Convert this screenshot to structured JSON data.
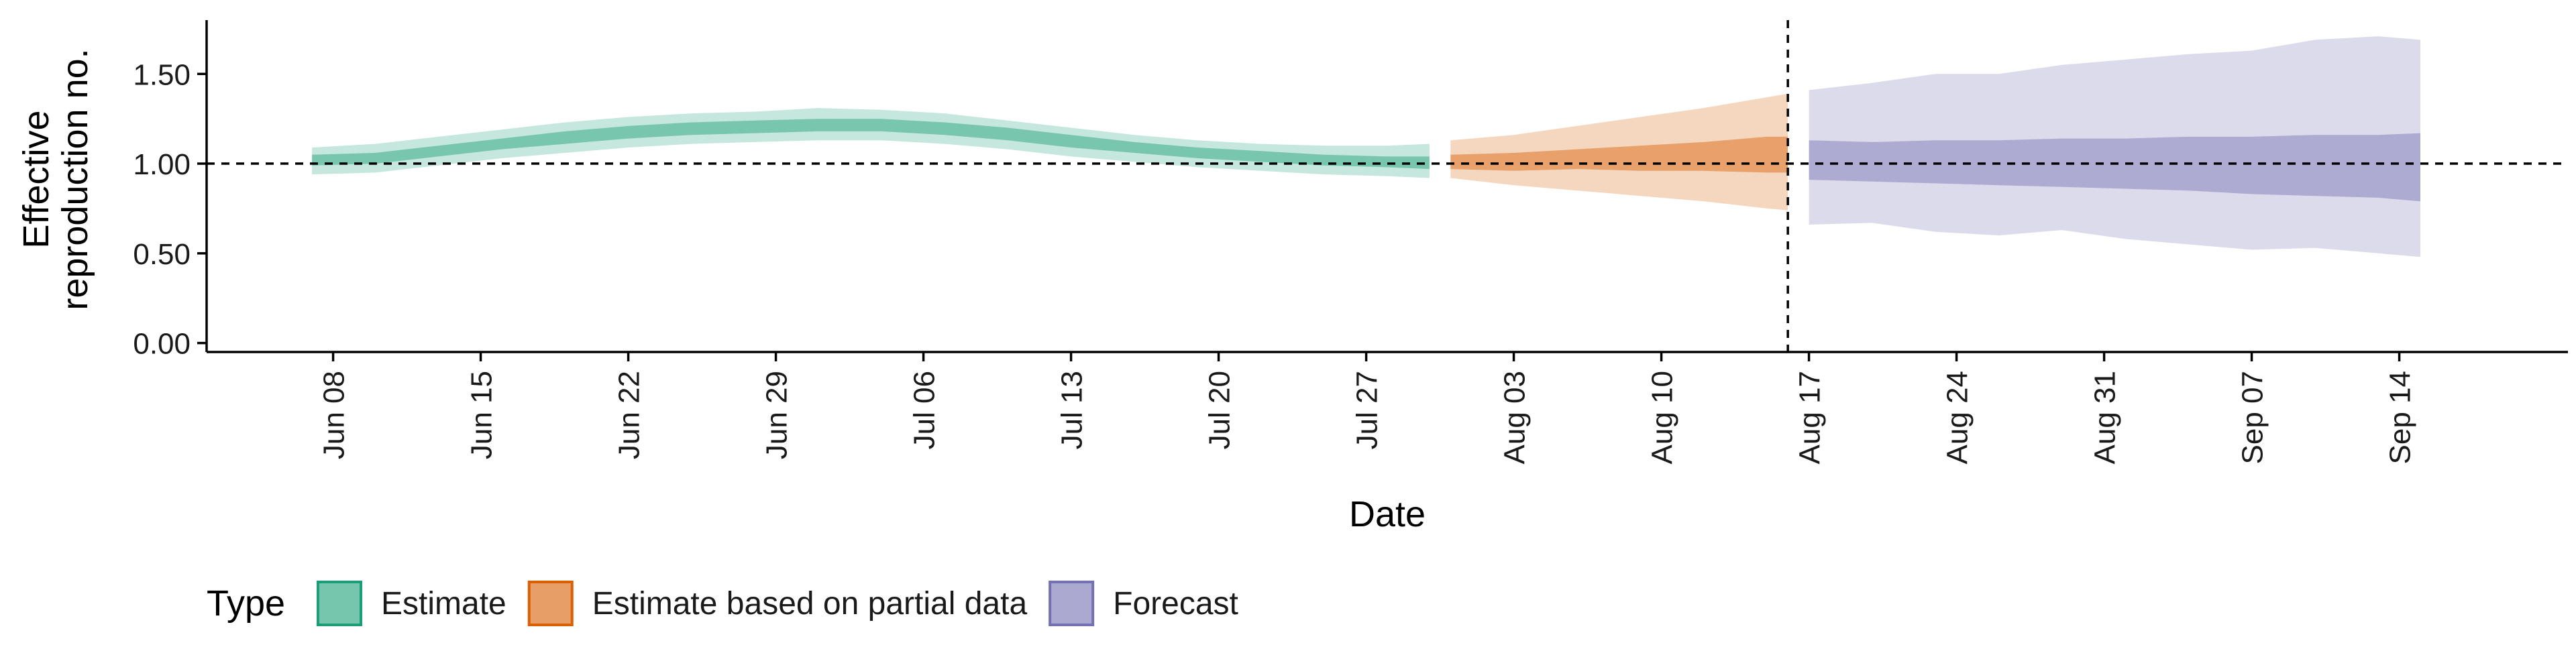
{
  "chart_data": {
    "type": "area",
    "xlabel": "Date",
    "ylabel": [
      "Effective",
      "reproduction no."
    ],
    "ylim": [
      -0.05,
      1.8
    ],
    "yticks": [
      0.0,
      0.5,
      1.0,
      1.5
    ],
    "ytick_labels": [
      "0.00",
      "0.50",
      "1.00",
      "1.50"
    ],
    "xlim": [
      "2020-06-02",
      "2020-09-22"
    ],
    "xticks": [
      "2020-06-08",
      "2020-06-15",
      "2020-06-22",
      "2020-06-29",
      "2020-07-06",
      "2020-07-13",
      "2020-07-20",
      "2020-07-27",
      "2020-08-03",
      "2020-08-10",
      "2020-08-17",
      "2020-08-24",
      "2020-08-31",
      "2020-09-07",
      "2020-09-14"
    ],
    "xtick_labels": [
      "Jun 08",
      "Jun 15",
      "Jun 22",
      "Jun 29",
      "Jul 06",
      "Jul 13",
      "Jul 20",
      "Jul 27",
      "Aug 03",
      "Aug 10",
      "Aug 17",
      "Aug 24",
      "Aug 31",
      "Sep 07",
      "Sep 14"
    ],
    "reference_line": {
      "y": 1.0,
      "style": "dashed"
    },
    "forecast_date_line": {
      "x": "2020-08-16",
      "style": "dashed"
    },
    "grid": false,
    "legend": {
      "position": "bottom-left",
      "title": "Type",
      "entries": [
        {
          "label": "Estimate",
          "color": "#1b9e77"
        },
        {
          "label": "Estimate based on partial data",
          "color": "#d95f02"
        },
        {
          "label": "Forecast",
          "color": "#7570b3"
        }
      ]
    },
    "series": [
      {
        "name": "Estimate",
        "color": "#1b9e77",
        "points": [
          {
            "x": "2020-06-07",
            "median": 1.02,
            "lower_50": 0.99,
            "upper_50": 1.05,
            "lower_90": 0.94,
            "upper_90": 1.09
          },
          {
            "x": "2020-06-10",
            "median": 1.03,
            "lower_50": 1.0,
            "upper_50": 1.06,
            "lower_90": 0.95,
            "upper_90": 1.11
          },
          {
            "x": "2020-06-13",
            "median": 1.07,
            "lower_50": 1.04,
            "upper_50": 1.1,
            "lower_90": 0.99,
            "upper_90": 1.15
          },
          {
            "x": "2020-06-16",
            "median": 1.11,
            "lower_50": 1.08,
            "upper_50": 1.14,
            "lower_90": 1.03,
            "upper_90": 1.19
          },
          {
            "x": "2020-06-19",
            "median": 1.14,
            "lower_50": 1.11,
            "upper_50": 1.18,
            "lower_90": 1.06,
            "upper_90": 1.23
          },
          {
            "x": "2020-06-22",
            "median": 1.17,
            "lower_50": 1.14,
            "upper_50": 1.21,
            "lower_90": 1.09,
            "upper_90": 1.26
          },
          {
            "x": "2020-06-25",
            "median": 1.2,
            "lower_50": 1.16,
            "upper_50": 1.23,
            "lower_90": 1.11,
            "upper_90": 1.28
          },
          {
            "x": "2020-06-28",
            "median": 1.21,
            "lower_50": 1.17,
            "upper_50": 1.24,
            "lower_90": 1.12,
            "upper_90": 1.29
          },
          {
            "x": "2020-07-01",
            "median": 1.22,
            "lower_50": 1.18,
            "upper_50": 1.25,
            "lower_90": 1.13,
            "upper_90": 1.31
          },
          {
            "x": "2020-07-04",
            "median": 1.22,
            "lower_50": 1.18,
            "upper_50": 1.25,
            "lower_90": 1.13,
            "upper_90": 1.3
          },
          {
            "x": "2020-07-07",
            "median": 1.2,
            "lower_50": 1.16,
            "upper_50": 1.23,
            "lower_90": 1.11,
            "upper_90": 1.28
          },
          {
            "x": "2020-07-10",
            "median": 1.16,
            "lower_50": 1.13,
            "upper_50": 1.2,
            "lower_90": 1.08,
            "upper_90": 1.24
          },
          {
            "x": "2020-07-13",
            "median": 1.12,
            "lower_50": 1.09,
            "upper_50": 1.16,
            "lower_90": 1.04,
            "upper_90": 1.2
          },
          {
            "x": "2020-07-16",
            "median": 1.09,
            "lower_50": 1.06,
            "upper_50": 1.12,
            "lower_90": 1.01,
            "upper_90": 1.16
          },
          {
            "x": "2020-07-19",
            "median": 1.06,
            "lower_50": 1.03,
            "upper_50": 1.09,
            "lower_90": 0.98,
            "upper_90": 1.13
          },
          {
            "x": "2020-07-22",
            "median": 1.04,
            "lower_50": 1.01,
            "upper_50": 1.07,
            "lower_90": 0.96,
            "upper_90": 1.11
          },
          {
            "x": "2020-07-25",
            "median": 1.02,
            "lower_50": 0.99,
            "upper_50": 1.05,
            "lower_90": 0.94,
            "upper_90": 1.1
          },
          {
            "x": "2020-07-28",
            "median": 1.01,
            "lower_50": 0.98,
            "upper_50": 1.04,
            "lower_90": 0.93,
            "upper_90": 1.1
          },
          {
            "x": "2020-07-30",
            "median": 1.01,
            "lower_50": 0.97,
            "upper_50": 1.04,
            "lower_90": 0.92,
            "upper_90": 1.11
          }
        ]
      },
      {
        "name": "Estimate based on partial data",
        "color": "#d95f02",
        "points": [
          {
            "x": "2020-07-31",
            "median": 1.01,
            "lower_50": 0.97,
            "upper_50": 1.05,
            "lower_90": 0.92,
            "upper_90": 1.13
          },
          {
            "x": "2020-08-03",
            "median": 1.02,
            "lower_50": 0.96,
            "upper_50": 1.06,
            "lower_90": 0.88,
            "upper_90": 1.16
          },
          {
            "x": "2020-08-06",
            "median": 1.03,
            "lower_50": 0.97,
            "upper_50": 1.08,
            "lower_90": 0.85,
            "upper_90": 1.21
          },
          {
            "x": "2020-08-09",
            "median": 1.03,
            "lower_50": 0.96,
            "upper_50": 1.1,
            "lower_90": 0.82,
            "upper_90": 1.26
          },
          {
            "x": "2020-08-12",
            "median": 1.04,
            "lower_50": 0.96,
            "upper_50": 1.12,
            "lower_90": 0.79,
            "upper_90": 1.31
          },
          {
            "x": "2020-08-15",
            "median": 1.04,
            "lower_50": 0.95,
            "upper_50": 1.15,
            "lower_90": 0.75,
            "upper_90": 1.37
          },
          {
            "x": "2020-08-16",
            "median": 1.04,
            "lower_50": 0.95,
            "upper_50": 1.15,
            "lower_90": 0.74,
            "upper_90": 1.39
          }
        ]
      },
      {
        "name": "Forecast",
        "color": "#7570b3",
        "points": [
          {
            "x": "2020-08-17",
            "median": 1.02,
            "lower_50": 0.91,
            "upper_50": 1.13,
            "lower_90": 0.66,
            "upper_90": 1.41
          },
          {
            "x": "2020-08-20",
            "median": 1.01,
            "lower_50": 0.9,
            "upper_50": 1.12,
            "lower_90": 0.67,
            "upper_90": 1.45
          },
          {
            "x": "2020-08-23",
            "median": 1.01,
            "lower_50": 0.89,
            "upper_50": 1.13,
            "lower_90": 0.62,
            "upper_90": 1.5
          },
          {
            "x": "2020-08-26",
            "median": 1.0,
            "lower_50": 0.88,
            "upper_50": 1.13,
            "lower_90": 0.6,
            "upper_90": 1.5
          },
          {
            "x": "2020-08-29",
            "median": 1.0,
            "lower_50": 0.87,
            "upper_50": 1.14,
            "lower_90": 0.63,
            "upper_90": 1.55
          },
          {
            "x": "2020-09-01",
            "median": 1.0,
            "lower_50": 0.86,
            "upper_50": 1.14,
            "lower_90": 0.58,
            "upper_90": 1.58
          },
          {
            "x": "2020-09-04",
            "median": 1.0,
            "lower_50": 0.85,
            "upper_50": 1.15,
            "lower_90": 0.55,
            "upper_90": 1.61
          },
          {
            "x": "2020-09-07",
            "median": 0.99,
            "lower_50": 0.83,
            "upper_50": 1.15,
            "lower_90": 0.52,
            "upper_90": 1.63
          },
          {
            "x": "2020-09-10",
            "median": 0.99,
            "lower_50": 0.82,
            "upper_50": 1.16,
            "lower_90": 0.53,
            "upper_90": 1.69
          },
          {
            "x": "2020-09-13",
            "median": 0.99,
            "lower_50": 0.81,
            "upper_50": 1.16,
            "lower_90": 0.5,
            "upper_90": 1.71
          },
          {
            "x": "2020-09-15",
            "median": 0.99,
            "lower_50": 0.79,
            "upper_50": 1.17,
            "lower_90": 0.48,
            "upper_90": 1.69
          }
        ]
      }
    ]
  }
}
